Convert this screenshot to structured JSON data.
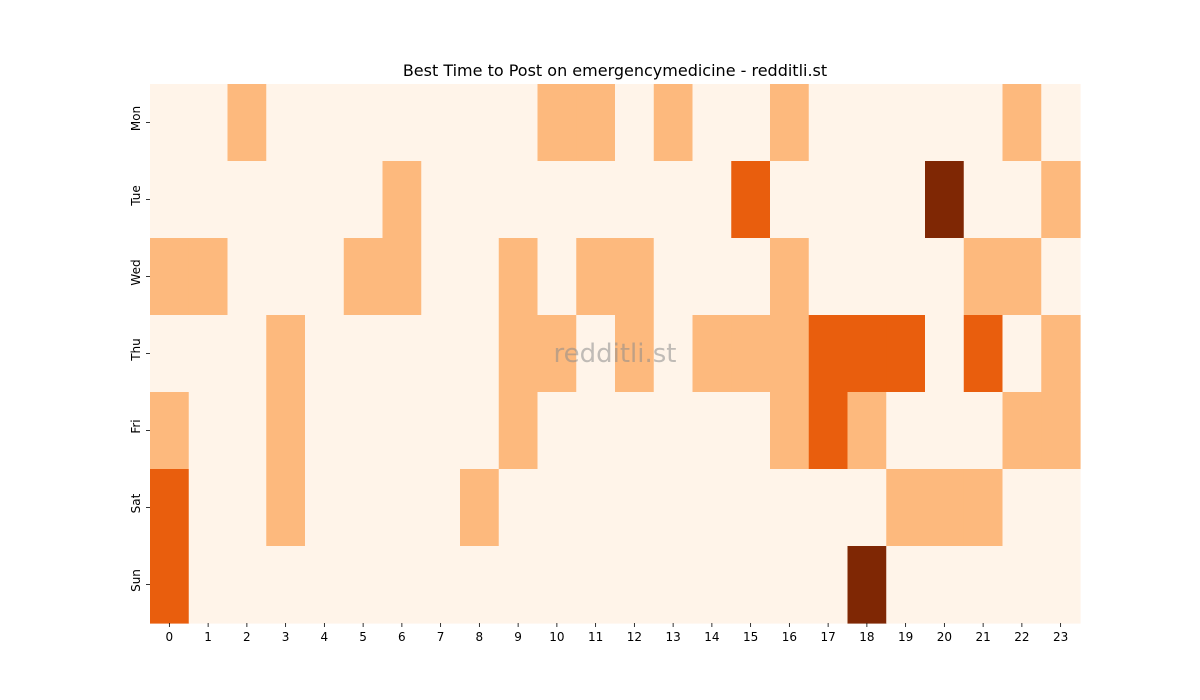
{
  "chart_data": {
    "type": "heatmap",
    "title": "Best Time to Post on emergencymedicine - redditli.st",
    "watermark": "redditli.st",
    "x_categories": [
      "0",
      "1",
      "2",
      "3",
      "4",
      "5",
      "6",
      "7",
      "8",
      "9",
      "10",
      "11",
      "12",
      "13",
      "14",
      "15",
      "16",
      "17",
      "18",
      "19",
      "20",
      "21",
      "22",
      "23"
    ],
    "y_categories": [
      "Mon",
      "Tue",
      "Wed",
      "Thu",
      "Fri",
      "Sat",
      "Sun"
    ],
    "values": [
      [
        0,
        0,
        1,
        0,
        0,
        0,
        0,
        0,
        0,
        0,
        1,
        1,
        0,
        1,
        0,
        0,
        1,
        0,
        0,
        0,
        0,
        0,
        1,
        0
      ],
      [
        0,
        0,
        0,
        0,
        0,
        0,
        1,
        0,
        0,
        0,
        0,
        0,
        0,
        0,
        0,
        2,
        0,
        0,
        0,
        0,
        3,
        0,
        0,
        1
      ],
      [
        1,
        1,
        0,
        0,
        0,
        1,
        1,
        0,
        0,
        1,
        0,
        1,
        1,
        0,
        0,
        0,
        1,
        0,
        0,
        0,
        0,
        1,
        1,
        0
      ],
      [
        0,
        0,
        0,
        1,
        0,
        0,
        0,
        0,
        0,
        1,
        1,
        0,
        1,
        0,
        1,
        1,
        1,
        2,
        2,
        2,
        0,
        2,
        0,
        1
      ],
      [
        1,
        0,
        0,
        1,
        0,
        0,
        0,
        0,
        0,
        1,
        0,
        0,
        0,
        0,
        0,
        0,
        1,
        2,
        1,
        0,
        0,
        0,
        1,
        1
      ],
      [
        2,
        0,
        0,
        1,
        0,
        0,
        0,
        0,
        1,
        0,
        0,
        0,
        0,
        0,
        0,
        0,
        0,
        0,
        0,
        1,
        1,
        1,
        0,
        0
      ],
      [
        2,
        0,
        0,
        0,
        0,
        0,
        0,
        0,
        0,
        0,
        0,
        0,
        0,
        0,
        0,
        0,
        0,
        0,
        3,
        0,
        0,
        0,
        0,
        0
      ]
    ],
    "colormap": [
      "#fff4e9",
      "#fdb97d",
      "#e95e0d",
      "#7f2704"
    ],
    "xlabel": "",
    "ylabel": ""
  }
}
